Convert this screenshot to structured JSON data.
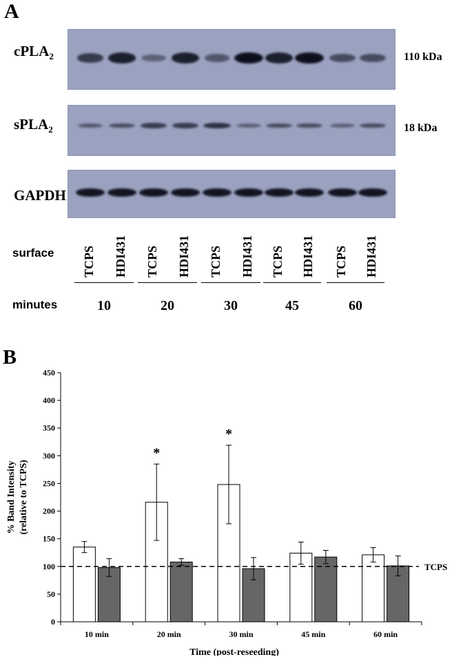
{
  "panel_a": {
    "letter": "A",
    "blots": [
      {
        "protein": "cPLA",
        "sub": "2",
        "size": "110 kDa",
        "band_intensity": [
          0.6,
          0.85,
          0.25,
          0.85,
          0.35,
          1.0,
          0.85,
          1.0,
          0.45,
          0.45
        ]
      },
      {
        "protein": "sPLA",
        "sub": "2",
        "size": "18 kDa",
        "band_intensity": [
          0.35,
          0.45,
          0.6,
          0.6,
          0.7,
          0.25,
          0.45,
          0.45,
          0.25,
          0.45
        ]
      },
      {
        "protein": "GAPDH",
        "sub": "",
        "size": "",
        "band_intensity": [
          0.95,
          0.95,
          0.95,
          0.95,
          0.95,
          0.95,
          0.95,
          0.95,
          0.95,
          0.95
        ]
      }
    ],
    "surface_label": "surface",
    "minutes_label": "minutes",
    "lanes": [
      "TCPS",
      "HDI431",
      "TCPS",
      "HDI431",
      "TCPS",
      "HDI431",
      "TCPS",
      "HDI431",
      "TCPS",
      "HDI431"
    ],
    "minutes": [
      "10",
      "20",
      "30",
      "45",
      "60"
    ]
  },
  "chart_data": {
    "type": "bar",
    "panel_letter": "B",
    "categories": [
      "10 min",
      "20 min",
      "30 min",
      "45 min",
      "60 min"
    ],
    "series": [
      {
        "color": "#ffffff",
        "values": [
          135,
          216,
          248,
          124,
          121
        ],
        "errors": [
          10,
          69,
          71,
          20,
          13
        ]
      },
      {
        "color": "#666666",
        "values": [
          98,
          108,
          96,
          117,
          101
        ],
        "errors": [
          16,
          6,
          20,
          12,
          18
        ]
      }
    ],
    "significance": [
      "",
      "*",
      "*",
      "",
      ""
    ],
    "reference_line": {
      "value": 100,
      "label": "TCPS"
    },
    "ylim": [
      0,
      450
    ],
    "yticks": [
      0,
      50,
      100,
      150,
      200,
      250,
      300,
      350,
      400,
      450
    ],
    "ylabel_line1": "% Band Intensity",
    "ylabel_line2": "(relative to TCPS)",
    "xlabel": "Time (post-reseeding)",
    "grid": false
  }
}
